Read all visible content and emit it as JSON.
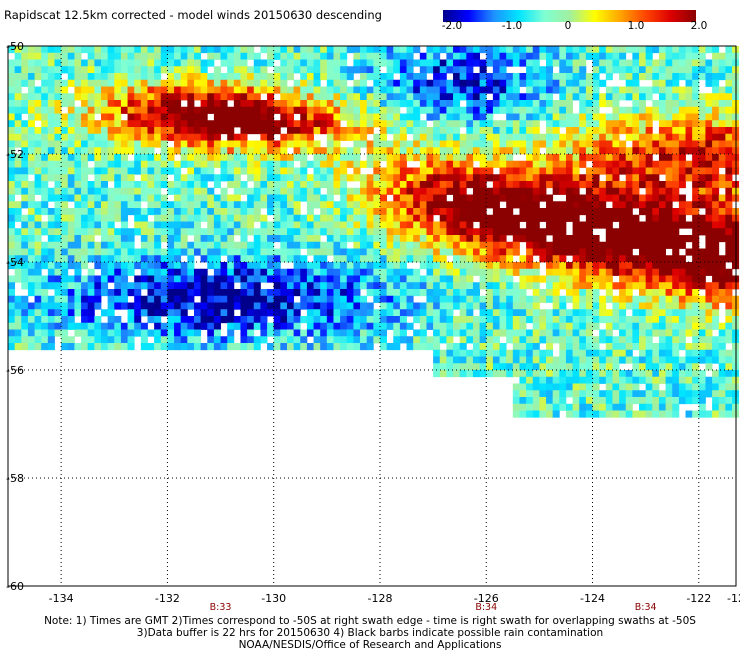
{
  "title": "Rapidscat 12.5km corrected - model winds 20150630 descending",
  "colorbar": {
    "labels": [
      "-2.0",
      "-1.0",
      "0",
      "1.0",
      "2.0"
    ],
    "stops": [
      "#00008b",
      "#0000ff",
      "#1e90ff",
      "#00e5ff",
      "#7fffd4",
      "#a0f0a0",
      "#ffff00",
      "#ffa500",
      "#ff4500",
      "#dd0000",
      "#8b0000"
    ],
    "range": [
      -2.0,
      2.0
    ]
  },
  "chart_data": {
    "type": "heatmap",
    "title": "Rapidscat 12.5km corrected - model winds 20150630 descending",
    "x_ticks": [
      "-134",
      "-132",
      "-130",
      "-128",
      "-126",
      "-124",
      "-122",
      "-12"
    ],
    "y_ticks": [
      "-50",
      "-52",
      "-54",
      "-56",
      "-58",
      "-60"
    ],
    "xlim": [
      -135,
      -121.3
    ],
    "ylim": [
      -60,
      -50
    ],
    "value_range": [
      -2.0,
      2.0
    ],
    "grid": true,
    "swath_times": [
      {
        "label": "B:33",
        "lon": -131
      },
      {
        "label": "B:34",
        "lon": -126
      },
      {
        "label": "B:34",
        "lon": -123
      }
    ],
    "data_extent_lat_south": -56.8
  },
  "notes": [
    "Note: 1) Times are GMT 2)Times correspond to -50S at right swath edge - time is right swath for overlapping swaths at -50S",
    "3)Data buffer is 22 hrs for 20150630 4) Black barbs indicate possible rain contamination",
    "NOAA/NESDIS/Office of Research and Applications"
  ]
}
